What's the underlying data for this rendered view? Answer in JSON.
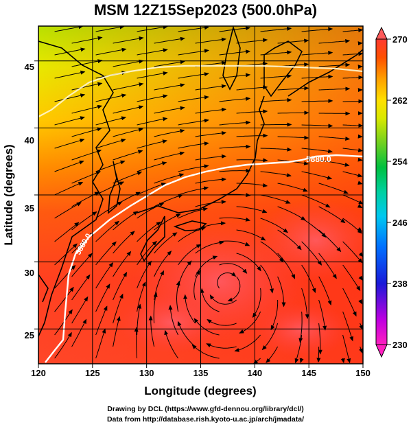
{
  "title": "MSM 12Z15Sep2023 (500.0hPa)",
  "credits": {
    "line1": "Drawing by DCL (https://www.gfd-dennou.org/library/dcl/)",
    "line2": "Data from http://database.rish.kyoto-u.ac.jp/arch/jmadata/"
  },
  "map": {
    "xlabel": "Longitude (degrees)",
    "ylabel": "Latitude  (degrees)",
    "xticks": [
      "120",
      "125",
      "130",
      "135",
      "140",
      "145",
      "150"
    ],
    "xtick_values": [
      120,
      125,
      130,
      135,
      140,
      145,
      150
    ],
    "yticks": [
      "25",
      "30",
      "35",
      "40",
      "45"
    ],
    "ytick_values": [
      25,
      30,
      35,
      40,
      45
    ],
    "xlim": [
      120,
      150
    ],
    "ylim": [
      22.4,
      47.6
    ],
    "contour_label": "5880.0",
    "grid": true
  },
  "colorbar": {
    "labels": [
      "270",
      "262",
      "254",
      "246",
      "238",
      "230"
    ],
    "values": [
      270,
      262,
      254,
      246,
      238,
      230
    ],
    "range": [
      230,
      270
    ],
    "colors": [
      "#ff00cc",
      "#b000e0",
      "#1a1ad8",
      "#0070ff",
      "#00b8ff",
      "#00d0a0",
      "#00c040",
      "#60d020",
      "#d8e800",
      "#ffe000",
      "#ffa000",
      "#ff5a00",
      "#ff2a10",
      "#ff3060"
    ]
  }
}
